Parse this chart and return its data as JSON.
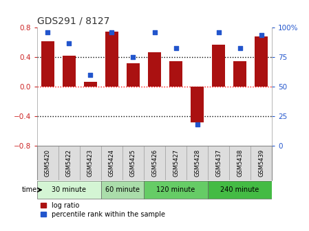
{
  "title": "GDS291 / 8127",
  "samples": [
    "GSM5420",
    "GSM5422",
    "GSM5423",
    "GSM5424",
    "GSM5425",
    "GSM5426",
    "GSM5427",
    "GSM5428",
    "GSM5437",
    "GSM5438",
    "GSM5439"
  ],
  "log_ratio": [
    0.62,
    0.42,
    0.07,
    0.75,
    0.32,
    0.47,
    0.35,
    -0.48,
    0.57,
    0.35,
    0.68
  ],
  "percentile": [
    96,
    87,
    60,
    96,
    75,
    96,
    83,
    18,
    96,
    83,
    94
  ],
  "bar_color": "#aa1111",
  "dot_color": "#2255cc",
  "ylim_left": [
    -0.8,
    0.8
  ],
  "ylim_right": [
    0,
    100
  ],
  "yticks_left": [
    -0.8,
    -0.4,
    0.0,
    0.4,
    0.8
  ],
  "yticks_right": [
    0,
    25,
    50,
    75,
    100
  ],
  "ytick_labels_right": [
    "0",
    "25",
    "50",
    "75",
    "100%"
  ],
  "hlines": [
    -0.4,
    0.0,
    0.4
  ],
  "hline_colors": [
    "black",
    "red",
    "black"
  ],
  "groups": [
    {
      "label": "30 minute",
      "start": 0,
      "end": 3,
      "color": "#d4f5d4"
    },
    {
      "label": "60 minute",
      "start": 3,
      "end": 5,
      "color": "#aaddaa"
    },
    {
      "label": "120 minute",
      "start": 5,
      "end": 8,
      "color": "#66cc66"
    },
    {
      "label": "240 minute",
      "start": 8,
      "end": 11,
      "color": "#44bb44"
    }
  ],
  "time_label": "time",
  "legend_bar_label": "log ratio",
  "legend_dot_label": "percentile rank within the sample",
  "bg_color": "#ffffff",
  "sample_bg": "#dddddd",
  "title_color": "#333333",
  "title_fontsize": 10,
  "bar_width": 0.6,
  "dot_size": 22,
  "left_tick_color": "#cc2222",
  "right_tick_color": "#2255cc"
}
